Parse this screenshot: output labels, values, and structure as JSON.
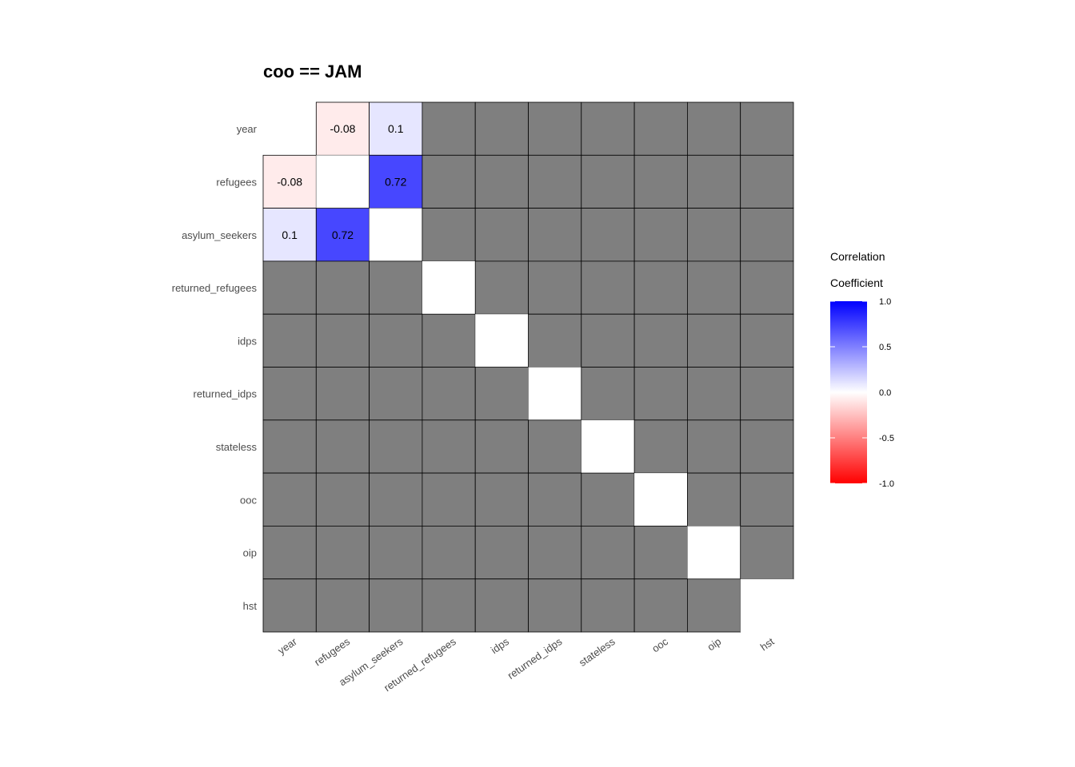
{
  "chart_data": {
    "type": "heatmap",
    "title": "coo == JAM",
    "variables": [
      "year",
      "refugees",
      "asylum_seekers",
      "returned_refugees",
      "idps",
      "returned_idps",
      "stateless",
      "ooc",
      "oip",
      "hst"
    ],
    "cells": [
      {
        "row": "year",
        "col": "refugees",
        "value": -0.08,
        "label": "-0.08"
      },
      {
        "row": "year",
        "col": "asylum_seekers",
        "value": 0.1,
        "label": "0.1"
      },
      {
        "row": "refugees",
        "col": "year",
        "value": -0.08,
        "label": "-0.08"
      },
      {
        "row": "refugees",
        "col": "asylum_seekers",
        "value": 0.72,
        "label": "0.72"
      },
      {
        "row": "asylum_seekers",
        "col": "year",
        "value": 0.1,
        "label": "0.1"
      },
      {
        "row": "asylum_seekers",
        "col": "refugees",
        "value": 0.72,
        "label": "0.72"
      }
    ],
    "missing_color": "#7f7f7f",
    "diagonal_color": "#ffffff",
    "legend": {
      "title_line1": "Correlation",
      "title_line2": "Coefficient",
      "range": [
        -1.0,
        1.0
      ],
      "ticks": [
        "1.0",
        "0.5",
        "0.0",
        "-0.5",
        "-1.0"
      ],
      "low_color": "#ff0000",
      "mid_color": "#ffffff",
      "high_color": "#0000ff",
      "placement": "right"
    }
  }
}
